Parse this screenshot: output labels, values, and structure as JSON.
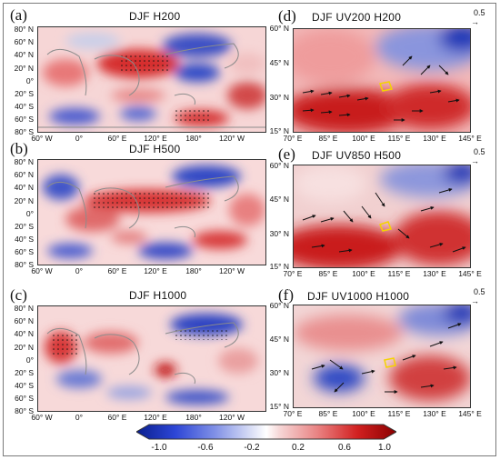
{
  "figure": {
    "global_panels": [
      {
        "letter": "(a)",
        "title": "DJF  H200"
      },
      {
        "letter": "(b)",
        "title": "DJF  H500"
      },
      {
        "letter": "(c)",
        "title": "DJF  H1000"
      }
    ],
    "regional_panels": [
      {
        "letter": "(d)",
        "title": "DJF  UV200  H200",
        "ref_value": "0.5"
      },
      {
        "letter": "(e)",
        "title": "DJF  UV850  H500",
        "ref_value": "0.5"
      },
      {
        "letter": "(f)",
        "title": "DJF  UV1000  H1000",
        "ref_value": "0.5"
      }
    ],
    "global_y_ticks": [
      "80° N",
      "60° N",
      "40° N",
      "20° N",
      "0°",
      "20° S",
      "40° S",
      "60° S",
      "80° S"
    ],
    "global_x_ticks": [
      "60° W",
      "0°",
      "60° E",
      "120° E",
      "180°",
      "120° W"
    ],
    "regional_y_ticks": [
      "60° N",
      "45° N",
      "30° N",
      "15° N"
    ],
    "regional_x_ticks": [
      "70° E",
      "85° E",
      "100° E",
      "115° E",
      "130° E",
      "145° E"
    ],
    "colorbar": {
      "ticks": [
        "-1.0",
        "-0.6",
        "-0.2",
        "0.2",
        "0.6",
        "1.0"
      ],
      "low_color": "#0a1f8f",
      "mid_color": "#ffffff",
      "high_color": "#8a0000"
    }
  }
}
